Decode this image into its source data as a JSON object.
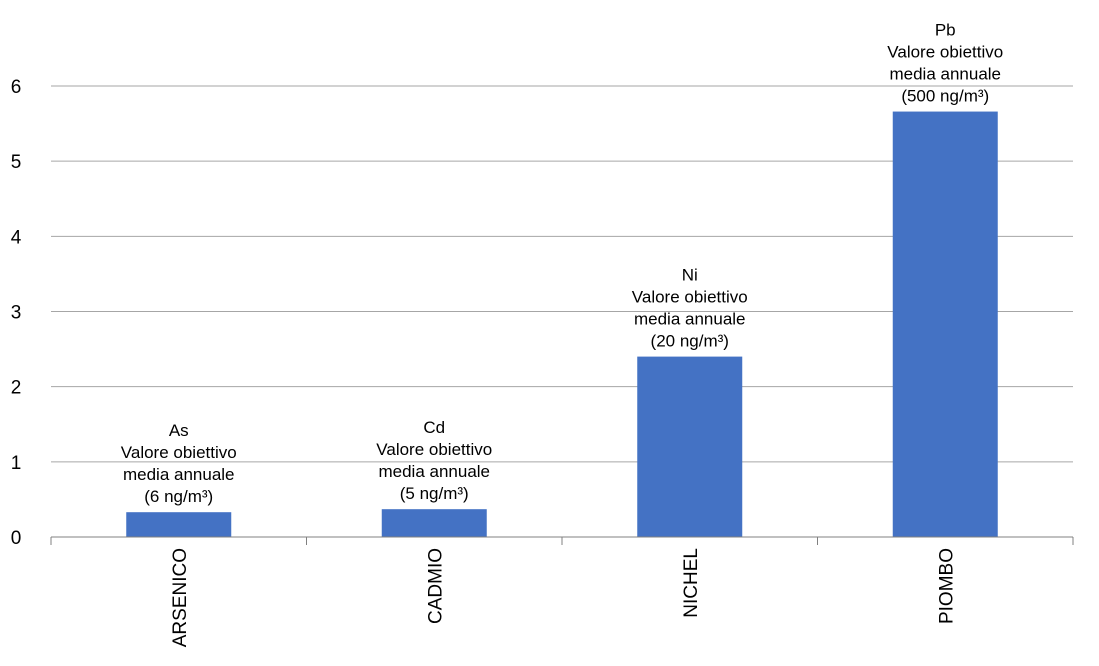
{
  "chart_data": {
    "type": "bar",
    "categories": [
      "ARSENICO",
      "CADMIO",
      "NICHEL",
      "PIOMBO"
    ],
    "values": [
      0.33,
      0.37,
      2.4,
      5.66
    ],
    "ylim": [
      0,
      6
    ],
    "yticks": [
      0,
      1,
      2,
      3,
      4,
      5,
      6
    ],
    "grid": true,
    "bar_color": "#4472C4",
    "annotations": [
      {
        "lines": [
          "As",
          "Valore obiettivo",
          "media annuale",
          "(6 ng/m³)"
        ]
      },
      {
        "lines": [
          "Cd",
          "Valore obiettivo",
          "media annuale",
          "(5 ng/m³)"
        ]
      },
      {
        "lines": [
          "Ni",
          "Valore obiettivo",
          "media annuale",
          "(20 ng/m³)"
        ]
      },
      {
        "lines": [
          "Pb",
          "Valore obiettivo",
          "media annuale",
          "(500 ng/m³)"
        ]
      }
    ]
  }
}
